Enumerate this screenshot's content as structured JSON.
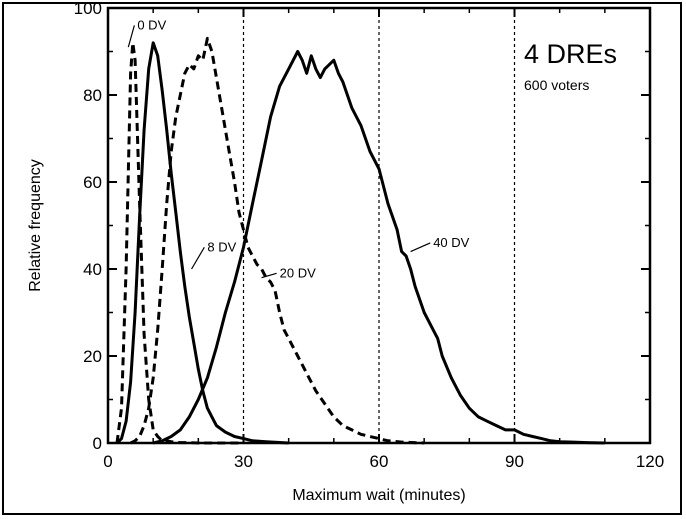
{
  "chart_data": {
    "type": "line",
    "xlabel": "Maximum wait (minutes)",
    "ylabel": "Relative frequency",
    "xlim": [
      0,
      120
    ],
    "ylim": [
      0,
      100
    ],
    "xticks": [
      0,
      30,
      60,
      90,
      120
    ],
    "yticks": [
      0,
      20,
      40,
      60,
      80,
      100
    ],
    "vlines": [
      30,
      60,
      90
    ],
    "grid": false,
    "legend": "none",
    "annotations": {
      "title": "4 DREs",
      "subtitle": "600 voters"
    },
    "series": [
      {
        "name": "0 DV",
        "dash": true,
        "x": [
          2,
          3,
          4,
          5,
          5.5,
          6,
          7,
          8,
          9,
          10,
          11,
          12,
          13,
          14,
          15,
          16,
          18,
          20,
          25,
          30
        ],
        "y": [
          0,
          8,
          40,
          85,
          92,
          88,
          55,
          25,
          10,
          3,
          1.5,
          0.5,
          0.5,
          0.3,
          0.2,
          0.1,
          0.1,
          0,
          0,
          0
        ]
      },
      {
        "name": "8 DV",
        "dash": false,
        "x": [
          2,
          3,
          4,
          5,
          6,
          7,
          8,
          9,
          10,
          11,
          12,
          13,
          14,
          15,
          16,
          17,
          18,
          19,
          20,
          21,
          22,
          23,
          24,
          26,
          28,
          30,
          32,
          35,
          40
        ],
        "y": [
          0,
          1,
          5,
          14,
          30,
          52,
          72,
          86,
          92,
          89,
          81,
          72,
          62,
          53,
          44,
          36,
          29,
          23,
          17,
          12,
          8,
          6,
          4,
          2.5,
          1.5,
          1,
          0.5,
          0.3,
          0
        ]
      },
      {
        "name": "20 DV",
        "dash": true,
        "x": [
          5,
          6,
          7,
          8,
          9,
          10,
          11,
          12,
          13,
          14,
          15,
          16,
          17,
          18,
          19,
          20,
          21,
          22,
          23,
          24,
          25,
          26,
          27,
          28,
          29,
          30,
          31,
          32,
          33,
          34,
          35,
          36,
          37,
          38,
          39,
          40,
          42,
          44,
          46,
          48,
          50,
          52,
          54,
          56,
          58,
          60,
          62,
          65,
          70
        ],
        "y": [
          0,
          0.5,
          1.5,
          4,
          8,
          15,
          26,
          40,
          55,
          67,
          75,
          80,
          85,
          87,
          86,
          89,
          88,
          93,
          90,
          84,
          78,
          72,
          66,
          60,
          53,
          49,
          45,
          43,
          41,
          40,
          38,
          37,
          35,
          30,
          26,
          24,
          20,
          16,
          12,
          9,
          6,
          4,
          3,
          2,
          1.5,
          1,
          0.5,
          0.2,
          0
        ]
      },
      {
        "name": "40 DV",
        "dash": false,
        "x": [
          10,
          12,
          14,
          16,
          18,
          20,
          22,
          24,
          26,
          28,
          30,
          32,
          34,
          36,
          38,
          40,
          42,
          43,
          44,
          45,
          46,
          47,
          48,
          49,
          50,
          51,
          52,
          54,
          56,
          58,
          60,
          62,
          64,
          65,
          66,
          67,
          68,
          70,
          72,
          73,
          74,
          76,
          78,
          80,
          82,
          84,
          86,
          88,
          90,
          92,
          94,
          96,
          98,
          100,
          103,
          106,
          110
        ],
        "y": [
          0,
          0.5,
          1.5,
          3,
          6,
          10,
          15,
          22,
          30,
          37,
          45,
          55,
          65,
          75,
          82,
          86,
          90,
          88,
          85,
          89,
          86,
          84,
          86,
          87,
          88,
          85,
          83,
          77,
          73,
          67,
          63,
          55,
          49,
          44,
          43,
          40,
          36,
          30,
          26,
          24,
          20,
          15,
          11,
          8,
          6,
          5,
          4,
          3,
          3,
          2,
          1.5,
          1,
          0.5,
          0.3,
          0.2,
          0.1,
          0
        ]
      }
    ],
    "labels": [
      {
        "text": "0 DV",
        "x": 6.5,
        "y": 96
      },
      {
        "text": "8 DV",
        "x": 22,
        "y": 45
      },
      {
        "text": "20 DV",
        "x": 38,
        "y": 39
      },
      {
        "text": "40 DV",
        "x": 72,
        "y": 46
      }
    ]
  }
}
